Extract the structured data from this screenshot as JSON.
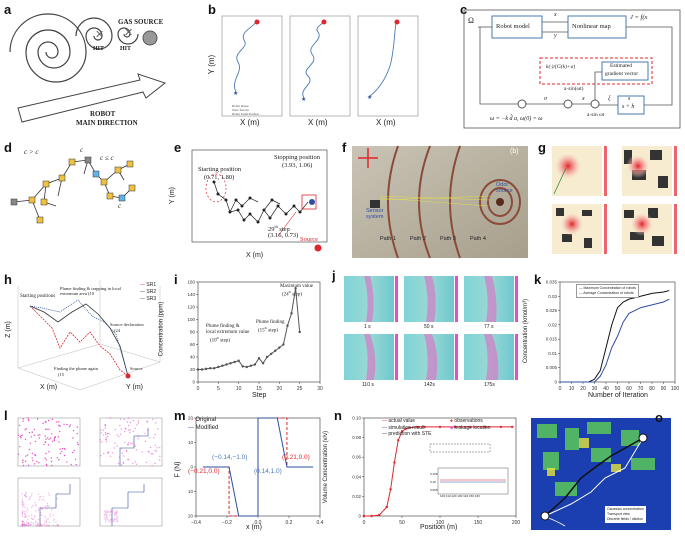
{
  "panel_labels": [
    "a",
    "b",
    "c",
    "d",
    "e",
    "f",
    "g",
    "h",
    "i",
    "j",
    "k",
    "l",
    "m",
    "n",
    "o"
  ],
  "colors": {
    "red": "#e0262d",
    "blue": "#2e4fa0",
    "pink": "#e24fc7",
    "teal": "#5fc0c8",
    "accent": "#4a7ab0"
  },
  "a": {
    "gas_source": "GAS SOURCE",
    "hit1": "HIT",
    "hit2": "HIT",
    "robot": "ROBOT",
    "main_dir": "MAIN DIRECTION"
  },
  "b": {
    "ylabel": "Y (m)",
    "xlabel": "X (m)",
    "legend": [
      "Robot Route",
      "Odor Source",
      "Robot Initial Position"
    ]
  },
  "c": {
    "omega": "Ω",
    "robot_model": "Robot model",
    "nonlinear_map": "Nonlinear map",
    "j_eq": "J = f(x",
    "x_r": "x",
    "y_r": "y",
    "estimated": "Estimated",
    "gradient": "gradient vector",
    "dhat": "k(·)/(G(k)+a)",
    "asin": "a·sin(ωt)",
    "asin2": "a·sin ωt",
    "filter_s": "s",
    "filter_den": "s + h",
    "law": "ω = −k d̂ a",
    "law2": ", ω(0) = ω",
    "xi": "ξ",
    "sig": "σ",
    "sym_x": "x"
  },
  "d": {
    "c1": "c",
    "c1_rel": " > c",
    "c2": "c",
    "c2_rel": " ≤ c",
    "cn": "c",
    "cn1": "c"
  },
  "e": {
    "starting": "Starting position",
    "start_val": "(0.71, 1.80)",
    "stopping": "Stopping position",
    "stop_val": "(3.93, 1.06)",
    "step": "29",
    "step_sup": "th",
    "step_rest": " step",
    "step_val": "(3.16, 0.73)",
    "ylabel": "Y (m)",
    "xlabel": "X (m)",
    "source": "Source",
    "xticks": [
      "0",
      "1",
      "2",
      "3",
      "4"
    ],
    "yticks": [
      "0",
      "1",
      "2",
      "3"
    ]
  },
  "f": {
    "sensor": "Sensor",
    "sensor2": "system",
    "odor": "Odor",
    "odor2": "source",
    "path1": "Path 1",
    "path2": "Path 2",
    "path3": "Path 3",
    "path4": "Path 4",
    "sub": "(b)"
  },
  "h": {
    "legend": [
      "SR1",
      "SR2",
      "SR3"
    ],
    "starting": "Starting positions",
    "plume": "Plume finding & trapping in local extremum area (10",
    "source_decl": "Source declaration",
    "source_decl2": "(24",
    "source": "Source",
    "finding": "Finding the plume again",
    "finding2": "(15",
    "zlabel": "Z (m)",
    "xlabel": "X (m)",
    "ylabel": "Y (m)"
  },
  "i": {
    "ylabel": "Concentration (ppm)",
    "xlabel": "Step",
    "max": "Maximum value",
    "max2": "(24",
    "pf1": "Plume finding &",
    "pf1b": "local extremum value",
    "pf1c": "(10",
    "pf2": "Plume finding",
    "pf2b": "(15",
    "sup": "th",
    "step": " step)",
    "xticks": [
      "0",
      "5",
      "10",
      "15",
      "20",
      "25",
      "30"
    ],
    "yticks": [
      "0",
      "20",
      "40",
      "60",
      "80",
      "100",
      "120",
      "140",
      "160"
    ]
  },
  "j": {
    "times": [
      "1 s",
      "50 s",
      "77 s",
      "110 s",
      "142s",
      "175s"
    ]
  },
  "k": {
    "legend": [
      "Maximum Concentration of robots",
      "Average Concentration of robots"
    ],
    "ylabel": "Concentration (kmol/m³)",
    "xlabel": "Number of Iteration",
    "xticks": [
      "0",
      "10",
      "20",
      "30",
      "40",
      "50",
      "60",
      "70",
      "80",
      "90",
      "100"
    ],
    "yticks": [
      "0",
      "0.005",
      "0.01",
      "0.015",
      "0.02",
      "0.025",
      "0.03",
      "0.035"
    ]
  },
  "l": {
    "xlabel": "x (m)",
    "ylabel": "y (m)"
  },
  "m": {
    "legend": [
      "Original",
      "Modified"
    ],
    "ylabel": "F (N)",
    "xlabel": "x (m)",
    "p1": "(−0.21,0.0)",
    "p2": "(−0.14,−1.0)",
    "p3": "(0.14,1.0)",
    "p4": "(0.21,0.0)",
    "xticks": [
      "−0.4",
      "−0.2",
      "0.0",
      "0.2",
      "0.4"
    ],
    "yticks": [
      "20",
      "10",
      "0",
      "10",
      "20"
    ]
  },
  "n": {
    "legend": [
      "actual value",
      "observations",
      "simulation result",
      "leakage location",
      "prediction with STE"
    ],
    "ylabel": "Volume Concentration (v/v)",
    "xlabel": "Position (m)",
    "xticks": [
      "0",
      "50",
      "100",
      "150",
      "200"
    ],
    "yticks": [
      "0",
      "0.02",
      "0.04",
      "0.06",
      "0.08",
      "0.10"
    ],
    "inset_x": "100 110 120 130 140 150 160",
    "inset_y": [
      "0.105",
      "0.10",
      "0.095"
    ]
  },
  "o": {
    "legend": [
      "Gaussian concentration",
      "Transport view",
      "Discrete fields / dilution"
    ]
  },
  "chart_data": [
    {
      "id": "i",
      "type": "line",
      "title": "",
      "xlabel": "Step",
      "ylabel": "Concentration (ppm)",
      "xlim": [
        0,
        30
      ],
      "ylim": [
        0,
        160
      ],
      "x": [
        0,
        1,
        2,
        3,
        4,
        5,
        6,
        7,
        8,
        9,
        10,
        11,
        12,
        13,
        14,
        15,
        16,
        17,
        18,
        19,
        20,
        21,
        22,
        23,
        24,
        25
      ],
      "y": [
        20,
        20,
        21,
        22,
        22,
        24,
        26,
        28,
        30,
        32,
        34,
        25,
        24,
        26,
        28,
        38,
        30,
        40,
        45,
        50,
        55,
        60,
        90,
        110,
        150,
        80
      ]
    },
    {
      "id": "k",
      "type": "line",
      "xlabel": "Number of Iteration",
      "ylabel": "Concentration (kmol/m³)",
      "xlim": [
        0,
        100
      ],
      "ylim": [
        0,
        0.035
      ],
      "series": [
        {
          "name": "Maximum Concentration of robots",
          "x": [
            0,
            25,
            30,
            35,
            40,
            45,
            50,
            55,
            60,
            65,
            70,
            80,
            90,
            95
          ],
          "y": [
            0,
            0,
            0.001,
            0.004,
            0.012,
            0.02,
            0.026,
            0.028,
            0.029,
            0.0295,
            0.03,
            0.031,
            0.0315,
            0.032
          ]
        },
        {
          "name": "Average Concentration of robots",
          "x": [
            0,
            30,
            35,
            40,
            45,
            50,
            55,
            60,
            65,
            70,
            80,
            90,
            95
          ],
          "y": [
            0,
            0,
            0.002,
            0.006,
            0.012,
            0.016,
            0.021,
            0.024,
            0.025,
            0.026,
            0.027,
            0.028,
            0.029
          ]
        }
      ]
    },
    {
      "id": "n",
      "type": "line",
      "xlabel": "Position (m)",
      "ylabel": "Volume Concentration (v/v)",
      "xlim": [
        0,
        200
      ],
      "ylim": [
        0,
        0.11
      ],
      "x": [
        0,
        10,
        20,
        30,
        35,
        40,
        45,
        50,
        55,
        60,
        70,
        80,
        100,
        120,
        140,
        160,
        180,
        195
      ],
      "y": [
        0,
        0,
        0.001,
        0.01,
        0.03,
        0.06,
        0.085,
        0.095,
        0.098,
        0.099,
        0.1,
        0.1,
        0.1,
        0.1,
        0.1,
        0.1,
        0.1,
        0.1
      ]
    },
    {
      "id": "m",
      "type": "line",
      "xlabel": "x (m)",
      "ylabel": "F (N)",
      "xlim": [
        -0.45,
        0.45
      ],
      "ylim": [
        -20,
        20
      ],
      "series": [
        {
          "name": "Original",
          "x": [
            -0.4,
            -0.21,
            -0.21,
            0,
            0,
            0.21,
            0.21,
            0.4
          ],
          "y": [
            0,
            0,
            -20,
            -20,
            20,
            20,
            0,
            0
          ]
        },
        {
          "name": "Modified",
          "x": [
            -0.4,
            -0.21,
            -0.14,
            0,
            0,
            0.14,
            0.21,
            0.4
          ],
          "y": [
            0,
            0,
            -20,
            -20,
            20,
            20,
            0,
            0
          ]
        }
      ]
    }
  ]
}
